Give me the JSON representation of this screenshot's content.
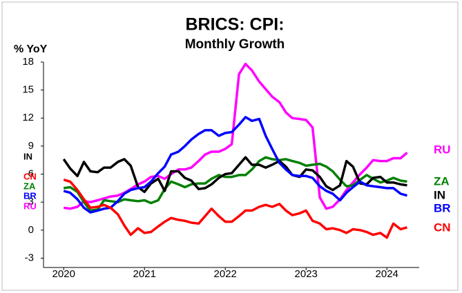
{
  "chart_data": {
    "type": "line",
    "title": "BRICS: CPI:",
    "subtitle": "Monthly Growth",
    "y_label": "% YoY",
    "x": [
      2020,
      2020.08,
      2020.17,
      2020.25,
      2020.33,
      2020.42,
      2020.5,
      2020.58,
      2020.67,
      2020.75,
      2020.83,
      2020.92,
      2021,
      2021.08,
      2021.17,
      2021.25,
      2021.33,
      2021.42,
      2021.5,
      2021.58,
      2021.67,
      2021.75,
      2021.83,
      2021.92,
      2022,
      2022.08,
      2022.17,
      2022.25,
      2022.33,
      2022.42,
      2022.5,
      2022.58,
      2022.67,
      2022.75,
      2022.83,
      2022.92,
      2023,
      2023.08,
      2023.17,
      2023.25,
      2023.33,
      2023.42,
      2023.5,
      2023.58,
      2023.67,
      2023.75,
      2023.83,
      2023.92,
      2024,
      2024.08,
      2024.17,
      2024.25
    ],
    "series": [
      {
        "name": "RU",
        "color": "#ff00ff",
        "values": [
          2.4,
          2.3,
          2.5,
          3.1,
          3.0,
          3.2,
          3.4,
          3.6,
          3.7,
          4.0,
          4.4,
          4.9,
          5.2,
          5.7,
          5.8,
          5.5,
          6.0,
          6.5,
          6.5,
          6.7,
          7.4,
          8.1,
          8.4,
          8.4,
          8.7,
          9.2,
          16.7,
          17.8,
          17.1,
          15.9,
          15.1,
          14.3,
          13.7,
          12.6,
          12.0,
          11.9,
          11.8,
          11.0,
          3.5,
          2.3,
          2.5,
          3.3,
          4.3,
          5.1,
          6.0,
          6.7,
          7.5,
          7.4,
          7.4,
          7.7,
          7.7,
          8.3
        ]
      },
      {
        "name": "ZA",
        "color": "#008000",
        "values": [
          4.5,
          4.6,
          4.1,
          3.0,
          2.1,
          2.2,
          3.2,
          3.1,
          3.0,
          3.3,
          3.2,
          3.1,
          3.2,
          2.9,
          3.2,
          4.4,
          5.2,
          4.9,
          4.6,
          4.9,
          5.0,
          5.0,
          5.5,
          5.9,
          5.7,
          5.7,
          5.9,
          5.9,
          6.5,
          7.4,
          7.8,
          7.6,
          7.5,
          7.6,
          7.4,
          7.2,
          6.9,
          7.0,
          7.1,
          6.8,
          6.3,
          5.4,
          4.7,
          4.8,
          5.4,
          5.9,
          5.5,
          5.1,
          5.3,
          5.6,
          5.3,
          5.2
        ]
      },
      {
        "name": "IN",
        "color": "#000000",
        "values": [
          7.6,
          6.6,
          5.8,
          7.3,
          6.3,
          6.2,
          6.7,
          6.7,
          7.3,
          7.6,
          6.9,
          4.6,
          4.1,
          5.0,
          5.5,
          4.2,
          6.3,
          6.3,
          5.6,
          5.3,
          4.4,
          4.5,
          4.9,
          5.6,
          6.0,
          6.1,
          7.0,
          7.8,
          7.0,
          7.0,
          6.7,
          7.0,
          7.4,
          6.8,
          5.9,
          5.7,
          6.5,
          6.4,
          5.7,
          4.7,
          4.3,
          4.8,
          7.4,
          6.8,
          5.0,
          4.9,
          5.6,
          5.7,
          5.1,
          5.1,
          4.9,
          4.8
        ]
      },
      {
        "name": "BR",
        "color": "#0000ff",
        "values": [
          4.2,
          4.0,
          3.3,
          2.4,
          1.9,
          2.1,
          2.3,
          2.4,
          3.1,
          3.9,
          4.3,
          4.5,
          4.6,
          5.2,
          6.1,
          6.8,
          8.1,
          8.4,
          9.0,
          9.7,
          10.3,
          10.7,
          10.7,
          10.1,
          10.4,
          10.5,
          11.3,
          12.1,
          11.7,
          11.9,
          10.1,
          8.7,
          7.2,
          6.5,
          5.9,
          5.8,
          5.8,
          5.6,
          4.7,
          4.2,
          3.9,
          3.2,
          4.0,
          4.6,
          5.2,
          4.8,
          4.7,
          4.6,
          4.5,
          4.5,
          3.9,
          3.7
        ]
      },
      {
        "name": "CN",
        "color": "#ff0000",
        "values": [
          5.4,
          5.2,
          4.3,
          3.3,
          2.4,
          2.5,
          2.7,
          2.4,
          1.7,
          0.5,
          -0.5,
          0.2,
          -0.3,
          -0.2,
          0.4,
          0.9,
          1.3,
          1.1,
          1.0,
          0.8,
          0.7,
          1.5,
          2.3,
          1.5,
          0.9,
          0.9,
          1.5,
          2.1,
          2.1,
          2.5,
          2.7,
          2.5,
          2.8,
          2.1,
          1.6,
          1.8,
          2.1,
          1.0,
          0.7,
          0.1,
          0.2,
          0.0,
          -0.3,
          0.1,
          0.0,
          -0.2,
          -0.5,
          -0.3,
          -0.8,
          0.7,
          0.1,
          0.3
        ]
      }
    ],
    "xlim": [
      2019.75,
      2024.4
    ],
    "xticks": [
      2020,
      2021,
      2022,
      2023,
      2024
    ],
    "ylim": [
      -4,
      18
    ],
    "yticks": [
      -3,
      0,
      3,
      6,
      9,
      12,
      15,
      18
    ],
    "grid": false
  }
}
